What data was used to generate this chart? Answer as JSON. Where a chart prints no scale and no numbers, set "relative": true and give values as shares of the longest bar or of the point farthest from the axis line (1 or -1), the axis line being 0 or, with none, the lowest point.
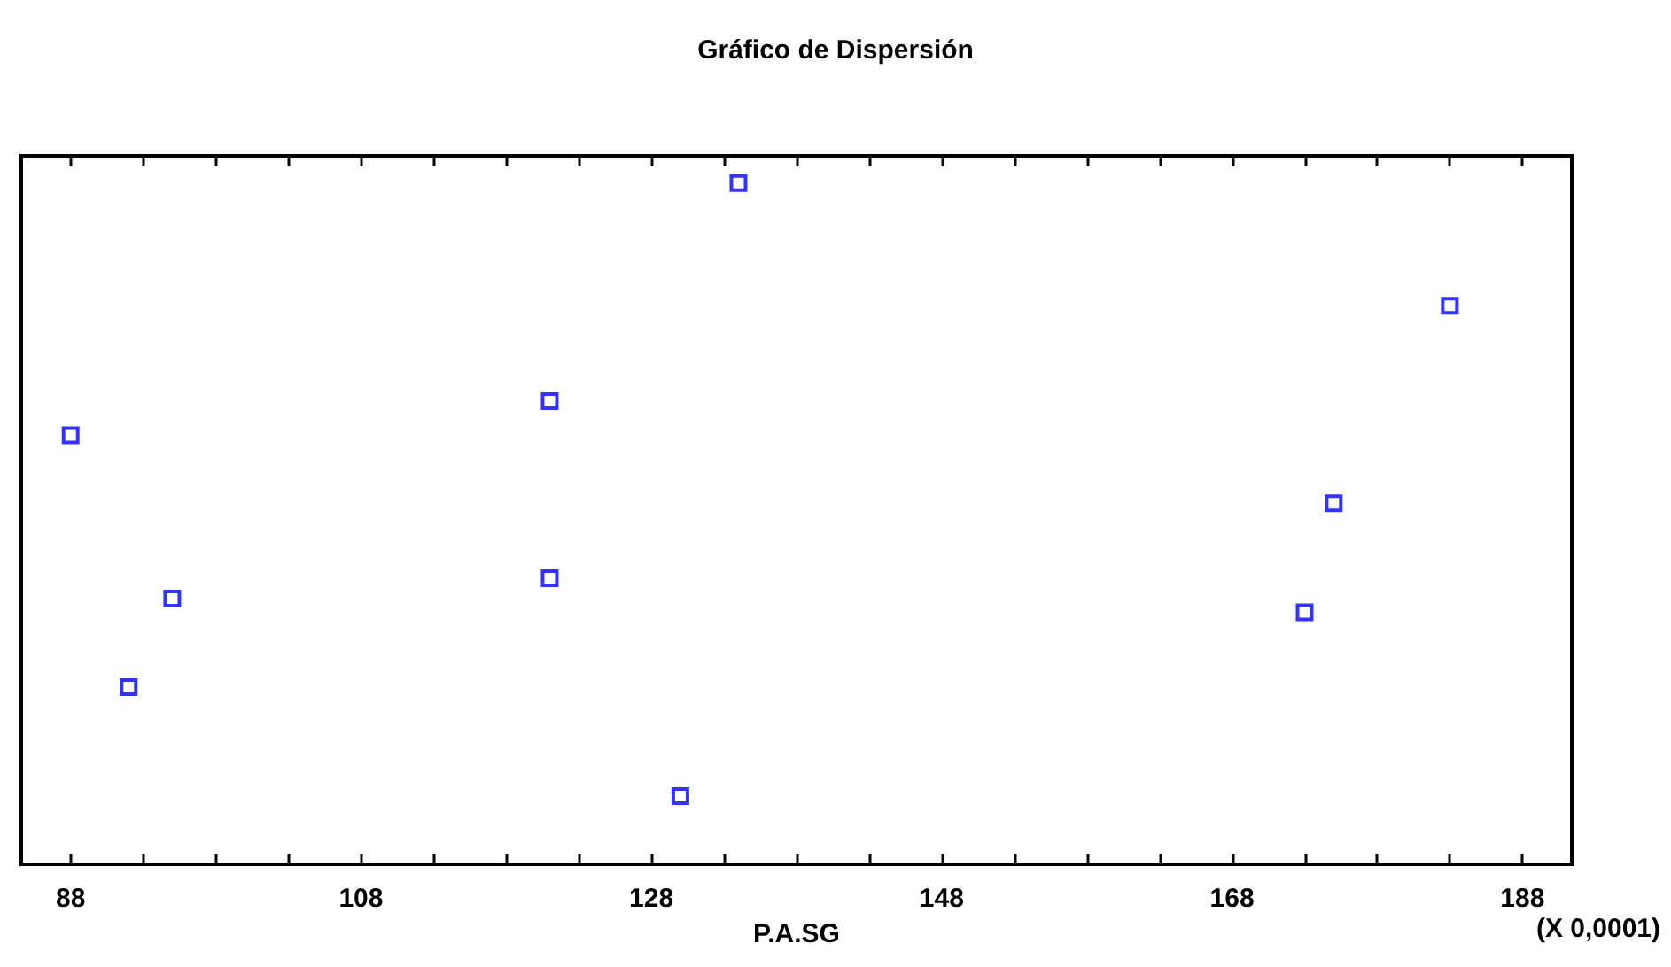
{
  "chart_data": {
    "type": "scatter",
    "title": "Gráfico de Dispersión",
    "xlabel": "P.A.SG",
    "annotations": [
      "(X 0,0001)"
    ],
    "x": [
      88,
      92,
      95,
      121,
      121,
      130,
      134,
      173,
      175,
      183
    ],
    "values": [
      0.63,
      0.26,
      0.39,
      0.68,
      0.42,
      0.1,
      1,
      0.37,
      0.53,
      0.82
    ],
    "color": "#0000ff",
    "marker": "square",
    "relative": true,
    "grid": false,
    "tick_labels": "x",
    "xlim": [
      84.6,
      191.4
    ],
    "xticks": [
      88,
      {
        "value": 93,
        "label": null
      },
      {
        "value": 98,
        "label": null
      },
      {
        "value": 103,
        "label": null
      },
      108,
      {
        "value": 113,
        "label": null
      },
      {
        "value": 118,
        "label": null
      },
      {
        "value": 123,
        "label": null
      },
      128,
      {
        "value": 133,
        "label": null
      },
      {
        "value": 138,
        "label": null
      },
      {
        "value": 143,
        "label": null
      },
      148,
      {
        "value": 153,
        "label": null
      },
      {
        "value": 158,
        "label": null
      },
      {
        "value": 163,
        "label": null
      },
      168,
      {
        "value": 173,
        "label": null
      },
      {
        "value": 178,
        "label": null
      },
      {
        "value": 183,
        "label": null
      },
      188
    ]
  }
}
